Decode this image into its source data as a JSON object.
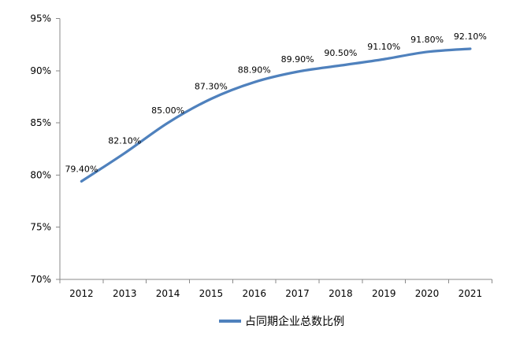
{
  "chart_data": {
    "type": "line",
    "title": "",
    "categories": [
      "2012",
      "2013",
      "2014",
      "2015",
      "2016",
      "2017",
      "2018",
      "2019",
      "2020",
      "2021"
    ],
    "series": [
      {
        "name": "占同期企业总数比例",
        "values": [
          79.4,
          82.1,
          85.0,
          87.3,
          88.9,
          89.9,
          90.5,
          91.1,
          91.8,
          92.1
        ],
        "color": "#4F81BD"
      }
    ],
    "data_labels": [
      "79.40%",
      "82.10%",
      "85.00%",
      "87.30%",
      "88.90%",
      "89.90%",
      "90.50%",
      "91.10%",
      "91.80%",
      "92.10%"
    ],
    "y_tick_labels": [
      "95%",
      "90%",
      "85%",
      "80%",
      "75%",
      "70%"
    ],
    "ylim": [
      70,
      95
    ],
    "y_tick_step": 5,
    "smoothed": true,
    "grid": false,
    "legend_position": "bottom",
    "colors": {
      "line": "#4F81BD",
      "axis": "#8A8A8A",
      "text": "#000000",
      "background": "#FFFFFF"
    }
  }
}
